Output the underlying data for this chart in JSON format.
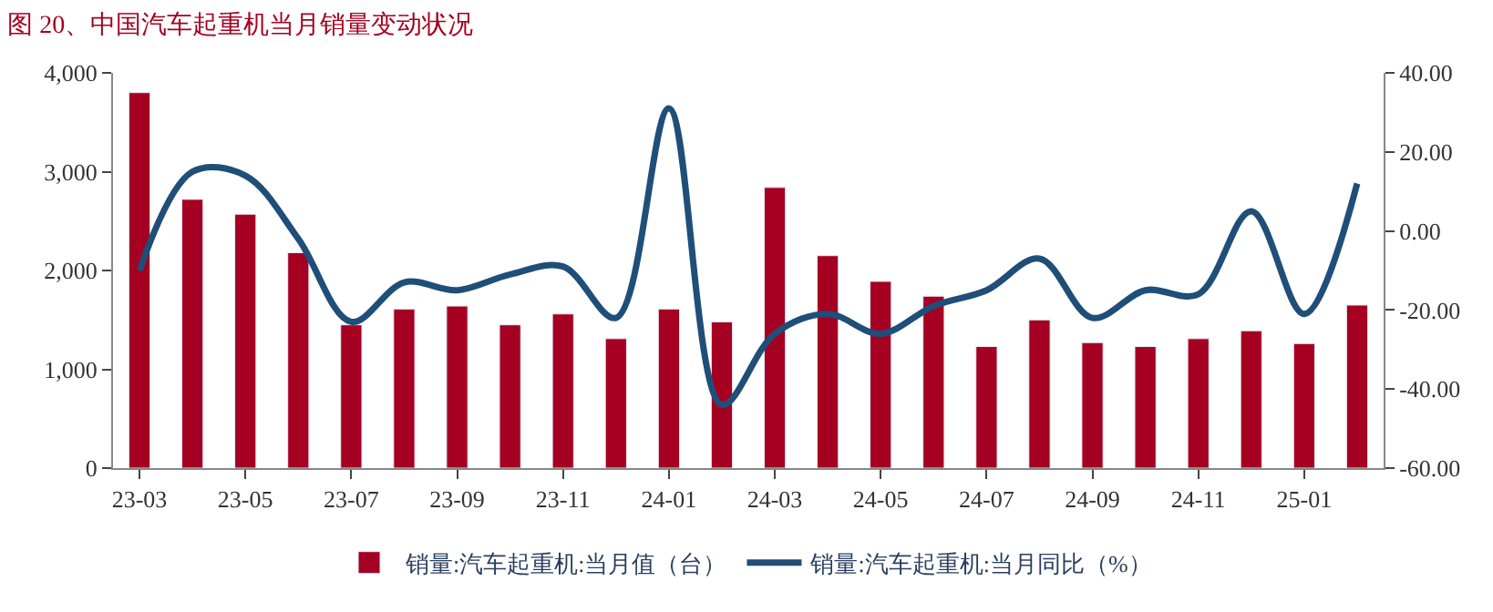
{
  "chart_data": {
    "type": "bar",
    "title": "图 20、中国汽车起重机当月销量变动状况",
    "categories": [
      "23-03",
      null,
      "23-05",
      null,
      "23-07",
      null,
      "23-09",
      null,
      "23-11",
      null,
      "24-01",
      null,
      "24-03",
      null,
      "24-05",
      null,
      "24-07",
      null,
      "24-09",
      null,
      "24-11",
      null,
      "25-01",
      null
    ],
    "series": [
      {
        "name": "销量:汽车起重机:当月值（台）",
        "color": "#a50021",
        "values": [
          3800,
          2720,
          2570,
          2180,
          1450,
          1610,
          1640,
          1450,
          1560,
          1310,
          1610,
          1480,
          2840,
          2150,
          1890,
          1740,
          1230,
          1500,
          1270,
          1230,
          1310,
          1390,
          1260,
          1650
        ]
      },
      {
        "name": "销量:汽车起重机:当月同比（%）",
        "type": "line",
        "axis": "y2",
        "color": "#1f4e79",
        "values": [
          -10,
          15,
          14,
          -2,
          -23,
          -13,
          -15,
          -11,
          -9,
          -22,
          31,
          -44,
          -26,
          -21,
          -26,
          -19,
          -15,
          -7,
          -22,
          -15,
          -16,
          5,
          -21,
          12
        ]
      }
    ],
    "ylim": [
      0,
      4000
    ],
    "yticks": [
      0,
      {
        "value": 1000,
        "label": "1,000"
      },
      {
        "value": 2000,
        "label": "2,000"
      },
      {
        "value": 3000,
        "label": "3,000"
      },
      {
        "value": 4000,
        "label": "4,000"
      }
    ],
    "y2lim": [
      -60,
      40
    ],
    "y2ticks": [
      {
        "value": -60,
        "label": "-60.00"
      },
      {
        "value": -40,
        "label": "-40.00"
      },
      {
        "value": -20,
        "label": "-20.00"
      },
      {
        "value": 0,
        "label": "0.00"
      },
      {
        "value": 20,
        "label": "20.00"
      },
      {
        "value": 40,
        "label": "40.00"
      }
    ],
    "legend": "bottom",
    "marker": "none",
    "line_style": "solid"
  }
}
